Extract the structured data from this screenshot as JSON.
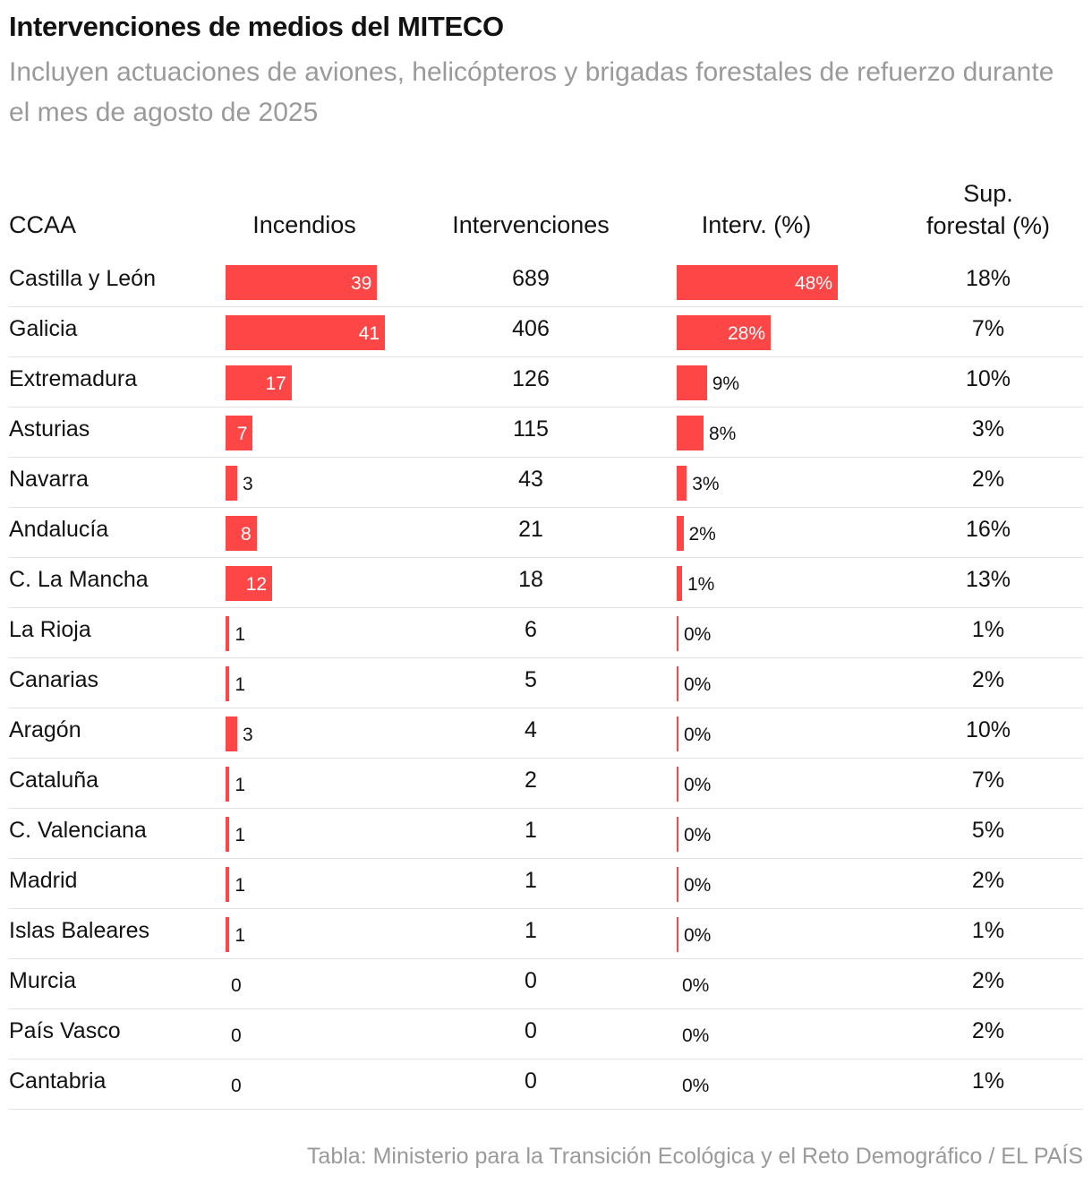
{
  "header": {
    "title": "Intervenciones de medios del MITECO",
    "subtitle": "Incluyen actuaciones de aviones, helicópteros y brigadas forestales de refuerzo durante el mes de agosto de 2025"
  },
  "chart_data": {
    "type": "table",
    "title": "Intervenciones de medios del MITECO",
    "columns": {
      "ccaa": "CCAA",
      "incendios": "Incendios",
      "intervenciones": "Intervenciones",
      "interv_pct": "Interv. (%)",
      "sup_forestal_line1": "Sup.",
      "sup_forestal_line2": "forestal (%)"
    },
    "rows": [
      {
        "ccaa": "Castilla y León",
        "incendios": 39,
        "intervenciones": "689",
        "interv_pct": 48,
        "sup_forestal": "18%"
      },
      {
        "ccaa": "Galicia",
        "incendios": 41,
        "intervenciones": "406",
        "interv_pct": 28,
        "sup_forestal": "7%"
      },
      {
        "ccaa": "Extremadura",
        "incendios": 17,
        "intervenciones": "126",
        "interv_pct": 9,
        "sup_forestal": "10%"
      },
      {
        "ccaa": "Asturias",
        "incendios": 7,
        "intervenciones": "115",
        "interv_pct": 8,
        "sup_forestal": "3%"
      },
      {
        "ccaa": "Navarra",
        "incendios": 3,
        "intervenciones": "43",
        "interv_pct": 3,
        "sup_forestal": "2%"
      },
      {
        "ccaa": "Andalucía",
        "incendios": 8,
        "intervenciones": "21",
        "interv_pct": 2,
        "sup_forestal": "16%"
      },
      {
        "ccaa": "C. La Mancha",
        "incendios": 12,
        "intervenciones": "18",
        "interv_pct": 1,
        "sup_forestal": "13%"
      },
      {
        "ccaa": "La Rioja",
        "incendios": 1,
        "intervenciones": "6",
        "interv_pct": 0,
        "sup_forestal": "1%"
      },
      {
        "ccaa": "Canarias",
        "incendios": 1,
        "intervenciones": "5",
        "interv_pct": 0,
        "sup_forestal": "2%"
      },
      {
        "ccaa": "Aragón",
        "incendios": 3,
        "intervenciones": "4",
        "interv_pct": 0,
        "sup_forestal": "10%"
      },
      {
        "ccaa": "Cataluña",
        "incendios": 1,
        "intervenciones": "2",
        "interv_pct": 0,
        "sup_forestal": "7%"
      },
      {
        "ccaa": "C. Valenciana",
        "incendios": 1,
        "intervenciones": "1",
        "interv_pct": 0,
        "sup_forestal": "5%"
      },
      {
        "ccaa": "Madrid",
        "incendios": 1,
        "intervenciones": "1",
        "interv_pct": 0,
        "sup_forestal": "2%"
      },
      {
        "ccaa": "Islas Baleares",
        "incendios": 1,
        "intervenciones": "1",
        "interv_pct": 0,
        "sup_forestal": "1%"
      },
      {
        "ccaa": "Murcia",
        "incendios": 0,
        "intervenciones": "0",
        "interv_pct": 0,
        "sup_forestal": "2%"
      },
      {
        "ccaa": "País Vasco",
        "incendios": 0,
        "intervenciones": "0",
        "interv_pct": 0,
        "sup_forestal": "2%"
      },
      {
        "ccaa": "Cantabria",
        "incendios": 0,
        "intervenciones": "0",
        "interv_pct": 0,
        "sup_forestal": "1%"
      }
    ],
    "incendios_max": 41,
    "interv_pct_max": 48,
    "bar_color": "#ff4646"
  },
  "footer": {
    "source": "Tabla: Ministerio para la Transición Ecológica y el Reto Demográfico / EL PAÍS"
  }
}
